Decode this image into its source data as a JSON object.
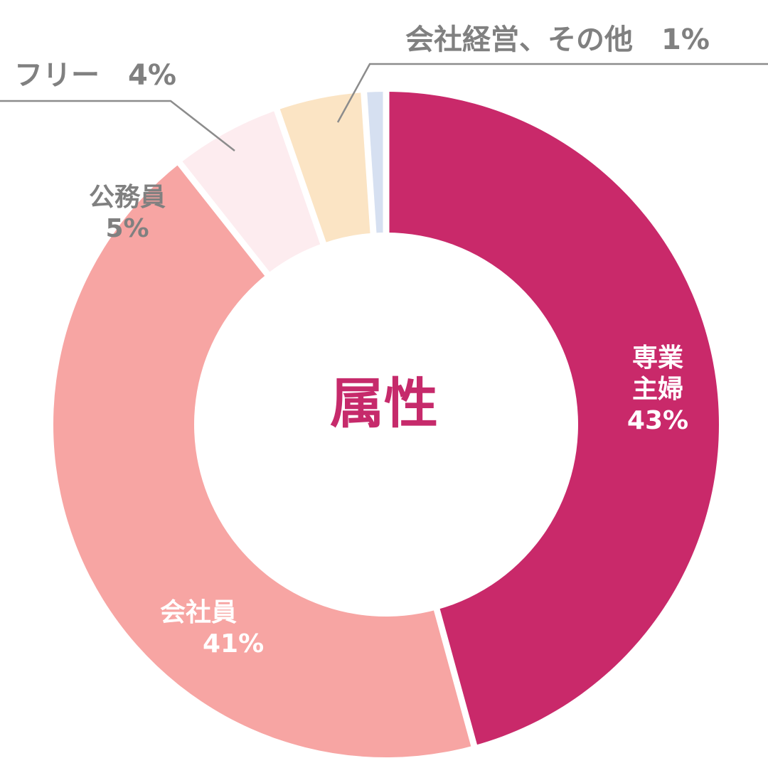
{
  "center_label": "属性",
  "colors": {
    "center_text": "#c62a6b",
    "label_text": "#808080",
    "leader_line": "#8c8c8c",
    "gap": "#ffffff"
  },
  "chart_data": {
    "type": "donut",
    "title": "属性",
    "legend": "none",
    "slices": [
      {
        "label": "専業主婦",
        "value": 43,
        "value_label": "43%",
        "color": "#c9296a"
      },
      {
        "label": "会社員",
        "value": 41,
        "value_label": "41%",
        "color": "#f7a5a3"
      },
      {
        "label": "公務員",
        "value": 5,
        "value_label": "5%",
        "color": "#fdecef"
      },
      {
        "label": "フリー",
        "value": 4,
        "value_label": "4%",
        "color": "#fbe4c4"
      },
      {
        "label": "会社経営、その他",
        "value": 1,
        "value_label": "1%",
        "color": "#d6e0f1"
      }
    ]
  },
  "labels": {
    "housewife": {
      "name_line1": "専業",
      "name_line2": "主婦",
      "value": "43%"
    },
    "employee": {
      "name": "会社員",
      "value": "41%"
    },
    "civil_servant": {
      "name": "公務員",
      "value": "5%"
    },
    "freelance": {
      "text": "フリー　4%"
    },
    "management": {
      "text": "会社経営、その他　1%"
    }
  }
}
